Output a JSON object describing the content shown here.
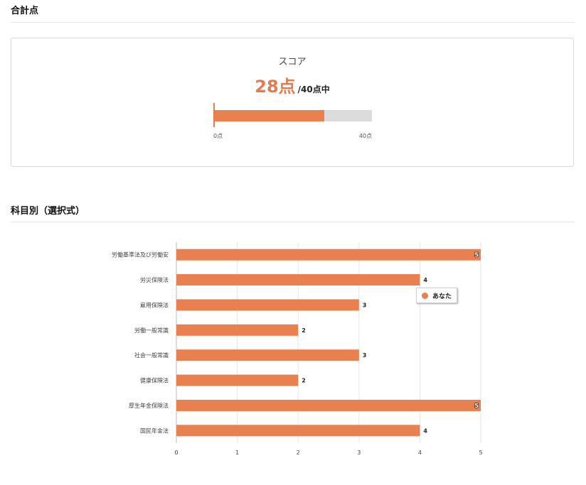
{
  "total_section": {
    "title": "合計点",
    "score_label": "スコア",
    "score_value": "28点",
    "score_total_text": "/40点中",
    "progress": {
      "value": 28,
      "max": 40,
      "min_label": "0点",
      "max_label": "40点"
    }
  },
  "subject_section": {
    "title": "科目別（選択式）"
  },
  "colors": {
    "accent": "#e8804f",
    "score_text": "#e57a4c",
    "track": "#dcdcdc",
    "grid": "#e6e6e6"
  },
  "chart_data": {
    "type": "bar",
    "orientation": "horizontal",
    "categories": [
      "労働基準法及び労働安",
      "労災保険法",
      "雇用保険法",
      "労働一般常識",
      "社会一般常識",
      "健康保険法",
      "厚生年金保険法",
      "国民年金法"
    ],
    "series": [
      {
        "name": "あなた",
        "values": [
          5,
          4,
          3,
          2,
          3,
          2,
          5,
          4
        ]
      }
    ],
    "data_labels": [
      "5",
      "4",
      "3",
      "2",
      "3",
      "2",
      "5",
      "4"
    ],
    "xlim": [
      0,
      5
    ],
    "x_ticks": [
      "0",
      "1",
      "2",
      "3",
      "4",
      "5"
    ],
    "grid": true,
    "legend_position": "right"
  }
}
